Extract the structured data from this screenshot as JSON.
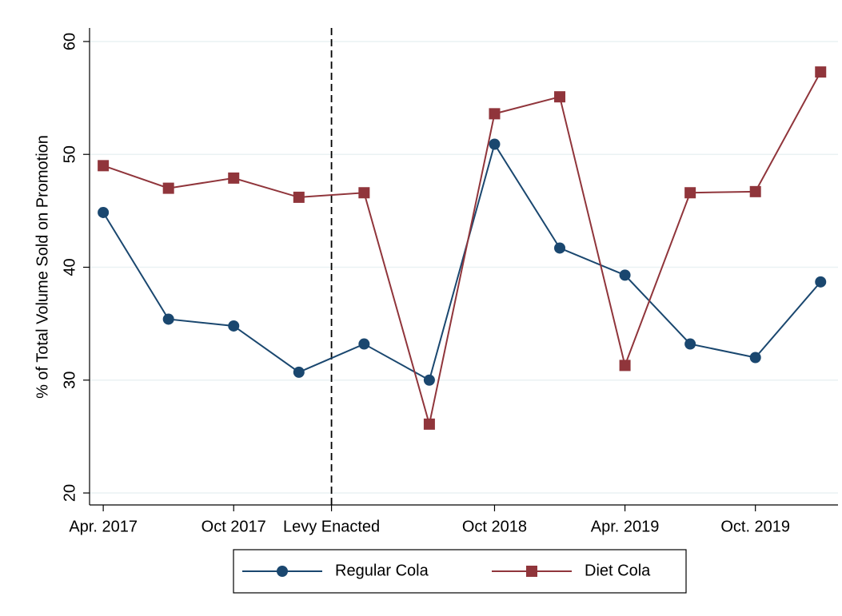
{
  "chart_data": {
    "type": "line",
    "y_label": "% of Total Volume Sold on Promotion",
    "x": [
      0,
      3,
      6,
      9,
      12,
      15,
      18,
      21,
      24,
      27,
      30,
      33
    ],
    "series": [
      {
        "name": "Regular Cola",
        "color": "#1a476f",
        "marker": "circle",
        "values": [
          44.85,
          35.4,
          34.8,
          30.7,
          33.2,
          30.0,
          50.9,
          41.7,
          39.3,
          33.2,
          32.0,
          38.7
        ]
      },
      {
        "name": "Diet Cola",
        "color": "#90353b",
        "marker": "square",
        "values": [
          49.0,
          47.0,
          47.9,
          46.2,
          46.6,
          26.1,
          53.6,
          55.1,
          31.3,
          46.6,
          46.7,
          57.3
        ]
      }
    ],
    "xlim": [
      -0.63,
      33.8
    ],
    "xticks": [
      {
        "value": 0,
        "label": "Apr. 2017"
      },
      {
        "value": 6,
        "label": "Oct 2017"
      },
      {
        "value": 10.5,
        "label": "Levy Enacted"
      },
      {
        "value": 18,
        "label": "Oct 2018"
      },
      {
        "value": 24,
        "label": "Apr. 2019"
      },
      {
        "value": 30,
        "label": "Oct. 2019"
      }
    ],
    "vline": 10.5,
    "ylim": [
      18.94,
      61.2
    ],
    "yticks": [
      20,
      30,
      40,
      50,
      60
    ],
    "grid": true,
    "legend": "bottom"
  }
}
